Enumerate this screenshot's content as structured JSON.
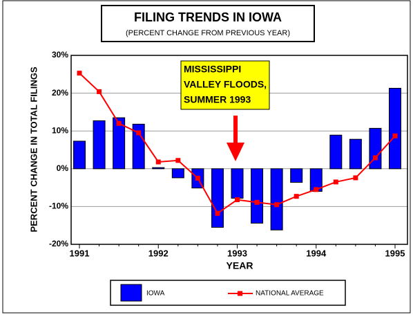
{
  "chart_data": {
    "type": "bar_line",
    "title": "FILING TRENDS  IN IOWA",
    "subtitle": "(PERCENT CHANGE FROM PREVIOUS YEAR)",
    "x_label": "YEAR",
    "y_label": "PERCENT CHANGE IN TOTAL FILINGS",
    "annotation": [
      "MISSISSIPPI",
      "VALLEY FLOODS,",
      "SUMMER 1993"
    ],
    "categories": [
      "1991",
      null,
      null,
      null,
      "1992",
      null,
      null,
      null,
      "1993",
      null,
      null,
      null,
      "1994",
      null,
      null,
      null,
      "1995"
    ],
    "series": [
      {
        "name": "IOWA",
        "type": "bar",
        "color": "#0000ff",
        "values": [
          7.3,
          12.7,
          13.5,
          11.8,
          0.3,
          -2.4,
          -5.1,
          -15.5,
          -7.8,
          -14.4,
          -16.2,
          -3.6,
          -6,
          8.9,
          7.8,
          10.7,
          21.3
        ]
      },
      {
        "name": "NATIONAL AVERAGE",
        "type": "line",
        "color": "#ff0000",
        "values": [
          25.3,
          20.4,
          12,
          9.5,
          1.8,
          2.2,
          -2.5,
          -11.8,
          -8.2,
          -8.9,
          -9.5,
          -7.3,
          -5.5,
          -3.5,
          -2.4,
          2.9,
          8.7
        ]
      }
    ],
    "ylim": [
      -20,
      30
    ],
    "yticks": [
      {
        "value": -20,
        "label": "-20%"
      },
      {
        "value": -10,
        "label": "-10%"
      },
      {
        "value": 0,
        "label": "0%"
      },
      {
        "value": 10,
        "label": "10%"
      },
      {
        "value": 20,
        "label": "20%"
      },
      {
        "value": 30,
        "label": "30%"
      }
    ],
    "grid": true
  }
}
